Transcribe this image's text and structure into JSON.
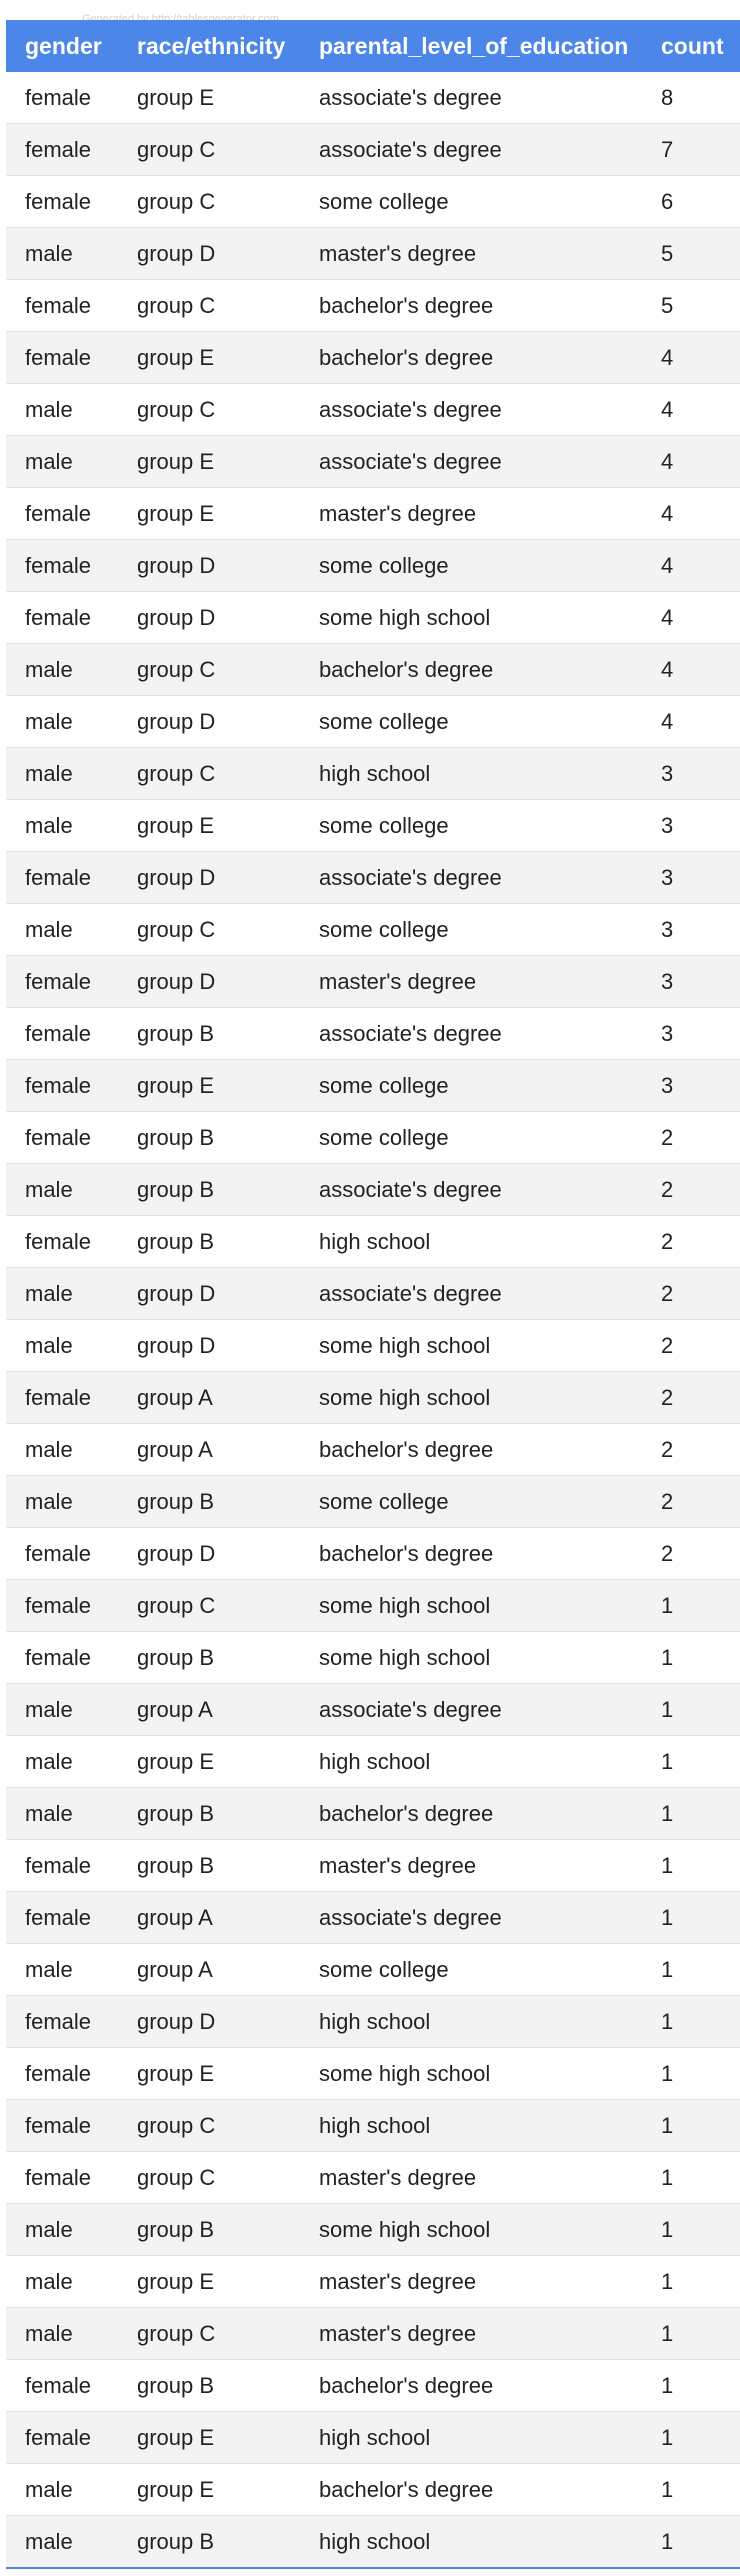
{
  "watermark": "Generated by http://tablesgenerator.com",
  "chart_data": {
    "type": "table",
    "columns": [
      "gender",
      "race/ethnicity",
      "parental_level_of_education",
      "count"
    ],
    "rows": [
      [
        "female",
        "group E",
        "associate's degree",
        "8"
      ],
      [
        "female",
        "group C",
        "associate's degree",
        "7"
      ],
      [
        "female",
        "group C",
        "some college",
        "6"
      ],
      [
        "male",
        "group D",
        "master's degree",
        "5"
      ],
      [
        "female",
        "group C",
        "bachelor's degree",
        "5"
      ],
      [
        "female",
        "group E",
        "bachelor's degree",
        "4"
      ],
      [
        "male",
        "group C",
        "associate's degree",
        "4"
      ],
      [
        "male",
        "group E",
        "associate's degree",
        "4"
      ],
      [
        "female",
        "group E",
        "master's degree",
        "4"
      ],
      [
        "female",
        "group D",
        "some college",
        "4"
      ],
      [
        "female",
        "group D",
        "some high school",
        "4"
      ],
      [
        "male",
        "group C",
        "bachelor's degree",
        "4"
      ],
      [
        "male",
        "group D",
        "some college",
        "4"
      ],
      [
        "male",
        "group C",
        "high school",
        "3"
      ],
      [
        "male",
        "group E",
        "some college",
        "3"
      ],
      [
        "female",
        "group D",
        "associate's degree",
        "3"
      ],
      [
        "male",
        "group C",
        "some college",
        "3"
      ],
      [
        "female",
        "group D",
        "master's degree",
        "3"
      ],
      [
        "female",
        "group B",
        "associate's degree",
        "3"
      ],
      [
        "female",
        "group E",
        "some college",
        "3"
      ],
      [
        "female",
        "group B",
        "some college",
        "2"
      ],
      [
        "male",
        "group B",
        "associate's degree",
        "2"
      ],
      [
        "female",
        "group B",
        "high school",
        "2"
      ],
      [
        "male",
        "group D",
        "associate's degree",
        "2"
      ],
      [
        "male",
        "group D",
        "some high school",
        "2"
      ],
      [
        "female",
        "group A",
        "some high school",
        "2"
      ],
      [
        "male",
        "group A",
        "bachelor's degree",
        "2"
      ],
      [
        "male",
        "group B",
        "some college",
        "2"
      ],
      [
        "female",
        "group D",
        "bachelor's degree",
        "2"
      ],
      [
        "female",
        "group C",
        "some high school",
        "1"
      ],
      [
        "female",
        "group B",
        "some high school",
        "1"
      ],
      [
        "male",
        "group A",
        "associate's degree",
        "1"
      ],
      [
        "male",
        "group E",
        "high school",
        "1"
      ],
      [
        "male",
        "group B",
        "bachelor's degree",
        "1"
      ],
      [
        "female",
        "group B",
        "master's degree",
        "1"
      ],
      [
        "female",
        "group A",
        "associate's degree",
        "1"
      ],
      [
        "male",
        "group A",
        "some college",
        "1"
      ],
      [
        "female",
        "group D",
        "high school",
        "1"
      ],
      [
        "female",
        "group E",
        "some high school",
        "1"
      ],
      [
        "female",
        "group C",
        "high school",
        "1"
      ],
      [
        "female",
        "group C",
        "master's degree",
        "1"
      ],
      [
        "male",
        "group B",
        "some high school",
        "1"
      ],
      [
        "male",
        "group E",
        "master's degree",
        "1"
      ],
      [
        "male",
        "group C",
        "master's degree",
        "1"
      ],
      [
        "female",
        "group B",
        "bachelor's degree",
        "1"
      ],
      [
        "female",
        "group E",
        "high school",
        "1"
      ],
      [
        "male",
        "group E",
        "bachelor's degree",
        "1"
      ],
      [
        "male",
        "group B",
        "high school",
        "1"
      ]
    ]
  }
}
